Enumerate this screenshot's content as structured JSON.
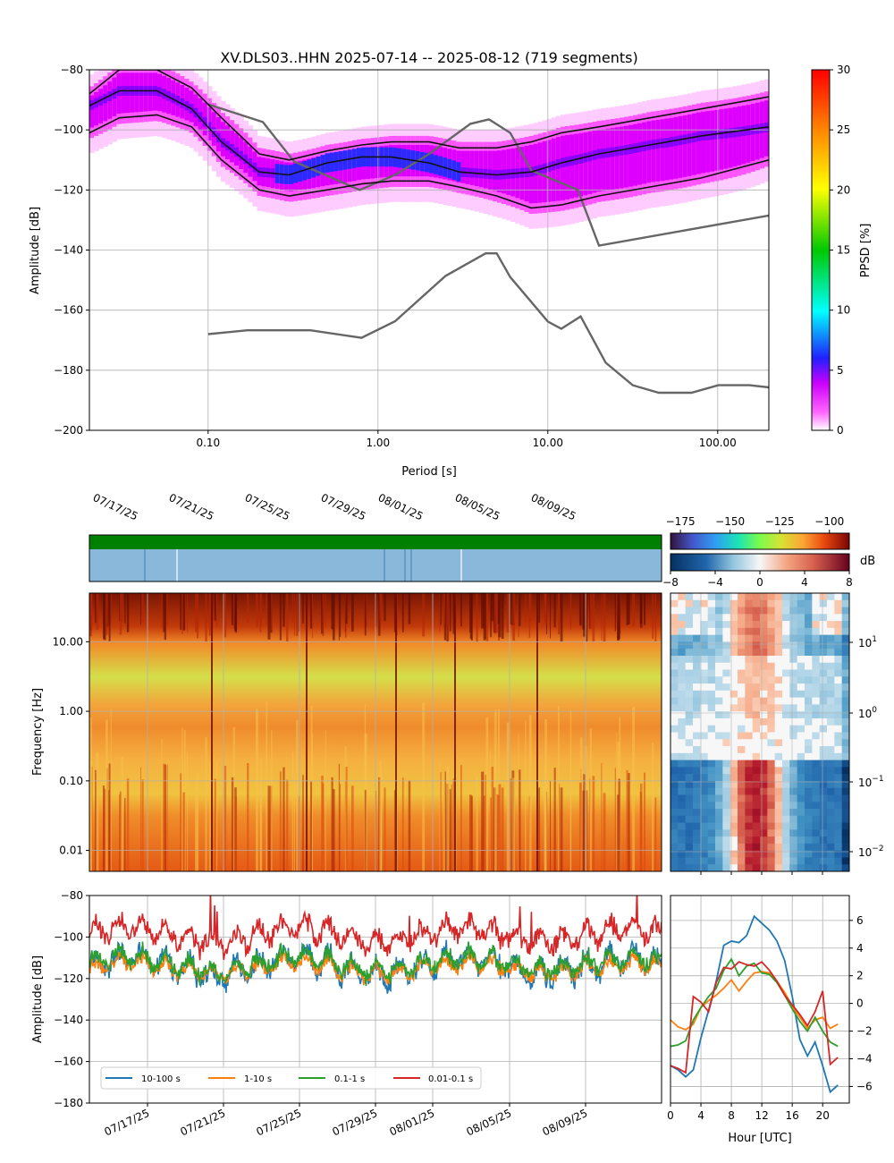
{
  "title": "XV.DLS03..HHN   2025-07-14 -- 2025-08-12  (719 segments)",
  "colors": {
    "p10_100": "#1f77b4",
    "p1_10": "#ff7f0e",
    "p01_1": "#2ca02c",
    "p001_01": "#d62728",
    "model": "#666666",
    "percentile": "#111111",
    "availability": "#008000",
    "gaps": "#8ab8da"
  },
  "chart_data": [
    {
      "type": "heatmap",
      "name": "ppsd",
      "xlabel": "Period [s]",
      "ylabel": "Amplitude [dB]",
      "xscale": "log",
      "xlim": [
        0.02,
        200
      ],
      "ylim": [
        -200,
        -80
      ],
      "xticks": [
        0.1,
        1,
        10,
        100
      ],
      "xtick_labels": [
        "0.10",
        "1.00",
        "10.00",
        "100.00"
      ],
      "yticks": [
        -200,
        -180,
        -160,
        -140,
        -120,
        -100,
        -80
      ],
      "colorbar": {
        "label": "PPSD [%]",
        "range": [
          0,
          30
        ],
        "ticks": [
          0,
          5,
          10,
          15,
          20,
          25,
          30
        ]
      },
      "grid": true,
      "percentiles": [
        {
          "x": [
            0.02,
            0.03,
            0.05,
            0.08,
            0.12,
            0.2,
            0.3,
            0.5,
            0.8,
            1.2,
            2,
            3,
            5,
            8,
            12,
            20,
            40,
            80,
            200
          ],
          "y": [
            -88,
            -80,
            -80,
            -86,
            -96,
            -108,
            -110,
            -107,
            -105,
            -104,
            -104,
            -106,
            -106,
            -104,
            -101,
            -99,
            -96,
            -93,
            -89
          ]
        },
        {
          "x": [
            0.02,
            0.03,
            0.05,
            0.08,
            0.12,
            0.2,
            0.3,
            0.5,
            0.8,
            1.2,
            2,
            3,
            5,
            8,
            12,
            20,
            40,
            80,
            200
          ],
          "y": [
            -92,
            -87,
            -87,
            -93,
            -104,
            -114,
            -115,
            -111,
            -109,
            -109,
            -111,
            -114,
            -115,
            -114,
            -111,
            -108,
            -105,
            -102,
            -99
          ]
        },
        {
          "x": [
            0.02,
            0.03,
            0.05,
            0.08,
            0.12,
            0.2,
            0.3,
            0.5,
            0.8,
            1.2,
            2,
            3,
            5,
            8,
            12,
            20,
            40,
            80,
            200
          ],
          "y": [
            -101,
            -96,
            -95,
            -99,
            -110,
            -120,
            -122,
            -120,
            -118,
            -117,
            -117,
            -119,
            -122,
            -126,
            -125,
            -122,
            -119,
            -116,
            -110
          ]
        }
      ],
      "models": [
        {
          "x": [
            0.1,
            0.21,
            0.32,
            0.78,
            1.26,
            2.0,
            3.5,
            4.5,
            6.0,
            8.0,
            15.0,
            20.0,
            200
          ],
          "y": [
            -91.5,
            -97.4,
            -110.5,
            -120.0,
            -115.0,
            -108.0,
            -98.0,
            -96.5,
            -101.0,
            -113.5,
            -120.0,
            -138.5,
            -128.5
          ]
        },
        {
          "x": [
            0.1,
            0.17,
            0.4,
            0.8,
            1.26,
            2.5,
            4.3,
            5.0,
            6.0,
            10.0,
            12.0,
            15.6,
            21.9,
            31.6,
            45,
            70,
            101,
            154,
            200
          ],
          "y": [
            -168,
            -166.7,
            -166.7,
            -169.2,
            -163.7,
            -148.6,
            -141.1,
            -141.1,
            -149.0,
            -163.8,
            -166.2,
            -162.1,
            -177.5,
            -185.0,
            -187.5,
            -187.5,
            -185.0,
            -185.0,
            -185.7
          ]
        }
      ]
    },
    {
      "type": "heatmap",
      "name": "spectrogram",
      "ylabel": "Frequency [Hz]",
      "yscale": "log",
      "ylim": [
        0.005,
        50
      ],
      "yticks": [
        0.01,
        0.1,
        1,
        10
      ],
      "ytick_labels": [
        "0.01",
        "0.10",
        "1.00",
        "10.00"
      ],
      "xticks": [
        "07/17/25",
        "07/21/25",
        "07/25/25",
        "07/29/25",
        "08/01/25",
        "08/05/25",
        "08/09/25"
      ],
      "colorbar": {
        "range": [
          -180,
          -90
        ],
        "ticks": [
          -175,
          -150,
          -125,
          -100
        ],
        "tick_labels": [
          "−175",
          "−150",
          "−125",
          "−100"
        ]
      }
    },
    {
      "type": "heatmap",
      "name": "diurnal",
      "yscale": "log",
      "yticks": [
        "10^1",
        "10^0",
        "10^-1",
        "10^-2"
      ],
      "colorbar": {
        "label": "dB",
        "range": [
          -8,
          8
        ],
        "ticks": [
          -8,
          -4,
          0,
          4,
          8
        ]
      }
    },
    {
      "type": "line",
      "name": "band-amplitude",
      "ylabel": "Amplitude [dB]",
      "ylim": [
        -180,
        -80
      ],
      "yticks": [
        -180,
        -160,
        -140,
        -120,
        -100,
        -80
      ],
      "xticks": [
        "07/17/25",
        "07/21/25",
        "07/25/25",
        "07/29/25",
        "08/01/25",
        "08/05/25",
        "08/09/25"
      ],
      "legend": "lower-left",
      "series": [
        {
          "name": "10-100 s",
          "mean": -114,
          "swing": 8
        },
        {
          "name": "1-10 s",
          "mean": -115,
          "swing": 5
        },
        {
          "name": "0.1-1 s",
          "mean": -113,
          "swing": 6
        },
        {
          "name": "0.01-0.1 s",
          "mean": -99,
          "swing": 7
        }
      ]
    },
    {
      "type": "line",
      "name": "hourly",
      "xlabel": "Hour [UTC]",
      "xlim": [
        0,
        23.5
      ],
      "ylim": [
        -7.2,
        7.8
      ],
      "xticks": [
        0,
        4,
        8,
        12,
        16,
        20
      ],
      "yticks": [
        -6,
        -4,
        -2,
        0,
        2,
        4,
        6
      ],
      "series": [
        {
          "name": "10-100 s",
          "x": [
            0,
            1,
            2,
            3,
            4,
            5,
            6,
            7,
            8,
            9,
            10,
            11,
            12,
            13,
            14,
            15,
            16,
            17,
            18,
            19,
            20,
            21,
            22
          ],
          "y": [
            -4.5,
            -4.8,
            -5.3,
            -4.8,
            -2.5,
            -0.5,
            1.6,
            4.2,
            4.5,
            4.4,
            4.9,
            6.3,
            5.8,
            5.3,
            4.5,
            3.1,
            0.5,
            -2.6,
            -3.8,
            -2.8,
            -4.5,
            -6.4,
            -5.9
          ]
        },
        {
          "name": "1-10 s",
          "x": [
            0,
            1,
            2,
            3,
            4,
            5,
            6,
            7,
            8,
            9,
            10,
            11,
            12,
            13,
            14,
            15,
            16,
            17,
            18,
            19,
            20,
            21,
            22
          ],
          "y": [
            -1.2,
            -1.7,
            -1.9,
            -1.5,
            -0.3,
            0.2,
            0.6,
            1.1,
            1.7,
            0.9,
            1.6,
            2.2,
            2.3,
            2.2,
            1.6,
            0.8,
            -0.2,
            -1.0,
            -1.8,
            -1.2,
            -1.0,
            -1.8,
            -1.5
          ]
        },
        {
          "name": "0.1-1 s",
          "x": [
            0,
            1,
            2,
            3,
            4,
            5,
            6,
            7,
            8,
            9,
            10,
            11,
            12,
            13,
            14,
            15,
            16,
            17,
            18,
            19,
            20,
            21,
            22
          ],
          "y": [
            -3.1,
            -3.0,
            -2.7,
            -1.2,
            -0.3,
            0.5,
            1.1,
            2.4,
            3.2,
            2.0,
            2.7,
            2.9,
            2.2,
            2.1,
            1.5,
            0.6,
            -0.4,
            -1.3,
            -2.0,
            -1.0,
            -2.0,
            -2.8,
            -3.1
          ]
        },
        {
          "name": "0.01-0.1 s",
          "x": [
            0,
            1,
            2,
            3,
            4,
            5,
            6,
            7,
            8,
            9,
            10,
            11,
            12,
            13,
            14,
            15,
            16,
            17,
            18,
            19,
            20,
            21,
            22
          ],
          "y": [
            -4.5,
            -4.7,
            -5.0,
            0.5,
            0.1,
            -0.6,
            1.5,
            2.6,
            2.5,
            3.0,
            2.8,
            2.7,
            3.0,
            2.4,
            1.6,
            0.6,
            -0.1,
            -0.8,
            -1.6,
            -0.6,
            0.9,
            -4.4,
            -3.9
          ]
        }
      ]
    }
  ]
}
